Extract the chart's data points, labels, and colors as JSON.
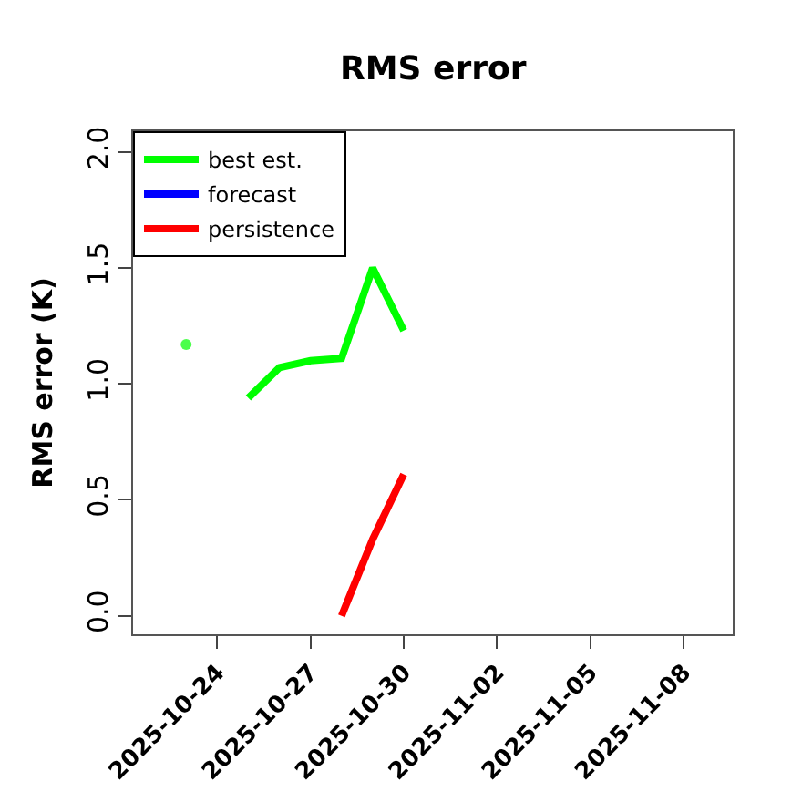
{
  "chart_data": {
    "type": "line",
    "title": "RMS error",
    "ylabel": "RMS error (K)",
    "xlim": [
      "2025-10-21T07:00",
      "2025-11-09T14:00"
    ],
    "xticks": [
      {
        "value": "2025-10-24",
        "label": "2025-10-24"
      },
      {
        "value": "2025-10-27",
        "label": "2025-10-27"
      },
      {
        "value": "2025-10-30",
        "label": "2025-10-30"
      },
      {
        "value": "2025-11-02",
        "label": "2025-11-02"
      },
      {
        "value": "2025-11-05",
        "label": "2025-11-05"
      },
      {
        "value": "2025-11-08",
        "label": "2025-11-08"
      }
    ],
    "ylim": [
      -0.08,
      2.09
    ],
    "yticks": [
      {
        "value": 0,
        "label": "0.0"
      },
      {
        "value": 0.5,
        "label": "0.5"
      },
      {
        "value": 1,
        "label": "1.0"
      },
      {
        "value": 1.5,
        "label": "1.5"
      },
      {
        "value": 2,
        "label": "2.0"
      }
    ],
    "series": [
      {
        "name": "best est.",
        "color": "#00ff00",
        "x": [
          "2025-10-23",
          "2025-10-24",
          "2025-10-25",
          "2025-10-26",
          "2025-10-27",
          "2025-10-28",
          "2025-10-29",
          "2025-10-30"
        ],
        "values": [
          1.17,
          null,
          0.94,
          1.07,
          1.1,
          1.11,
          1.5,
          1.23
        ]
      },
      {
        "name": "forecast",
        "color": "#0000ff"
      },
      {
        "name": "persistence",
        "color": "#ff0000",
        "x": [
          "2025-10-28",
          "2025-10-29",
          "2025-10-30"
        ],
        "values": [
          0.0,
          0.33,
          0.61
        ]
      }
    ],
    "grid": false,
    "legend": "top left",
    "marker": "none",
    "line_style": "solid"
  }
}
